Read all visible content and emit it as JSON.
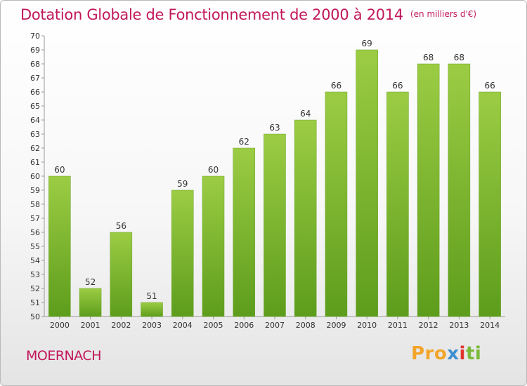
{
  "page": {
    "title": "Dotation Globale de Fonctionnement de 2000 à 2014",
    "unit": "(en milliers d'€)",
    "commune": "MOERNACH",
    "logo": {
      "p1": "Pro",
      "p2": "x",
      "p3": "i",
      "p4": "ti"
    }
  },
  "chart_data": {
    "type": "bar",
    "title": "Dotation Globale de Fonctionnement de 2000 à 2014",
    "subtitle": "(en milliers d'€)",
    "categories": [
      "2000",
      "2001",
      "2002",
      "2003",
      "2004",
      "2005",
      "2006",
      "2007",
      "2008",
      "2009",
      "2010",
      "2011",
      "2012",
      "2013",
      "2014"
    ],
    "values": [
      60,
      52,
      56,
      51,
      59,
      60,
      62,
      63,
      64,
      66,
      69,
      66,
      68,
      68,
      66
    ],
    "ylim": [
      50,
      70
    ],
    "ytick_step": 1,
    "grid": false,
    "bar_color_top": "#9ccc44",
    "bar_color_bottom": "#5d9d1c",
    "xlabel": "",
    "ylabel": ""
  }
}
